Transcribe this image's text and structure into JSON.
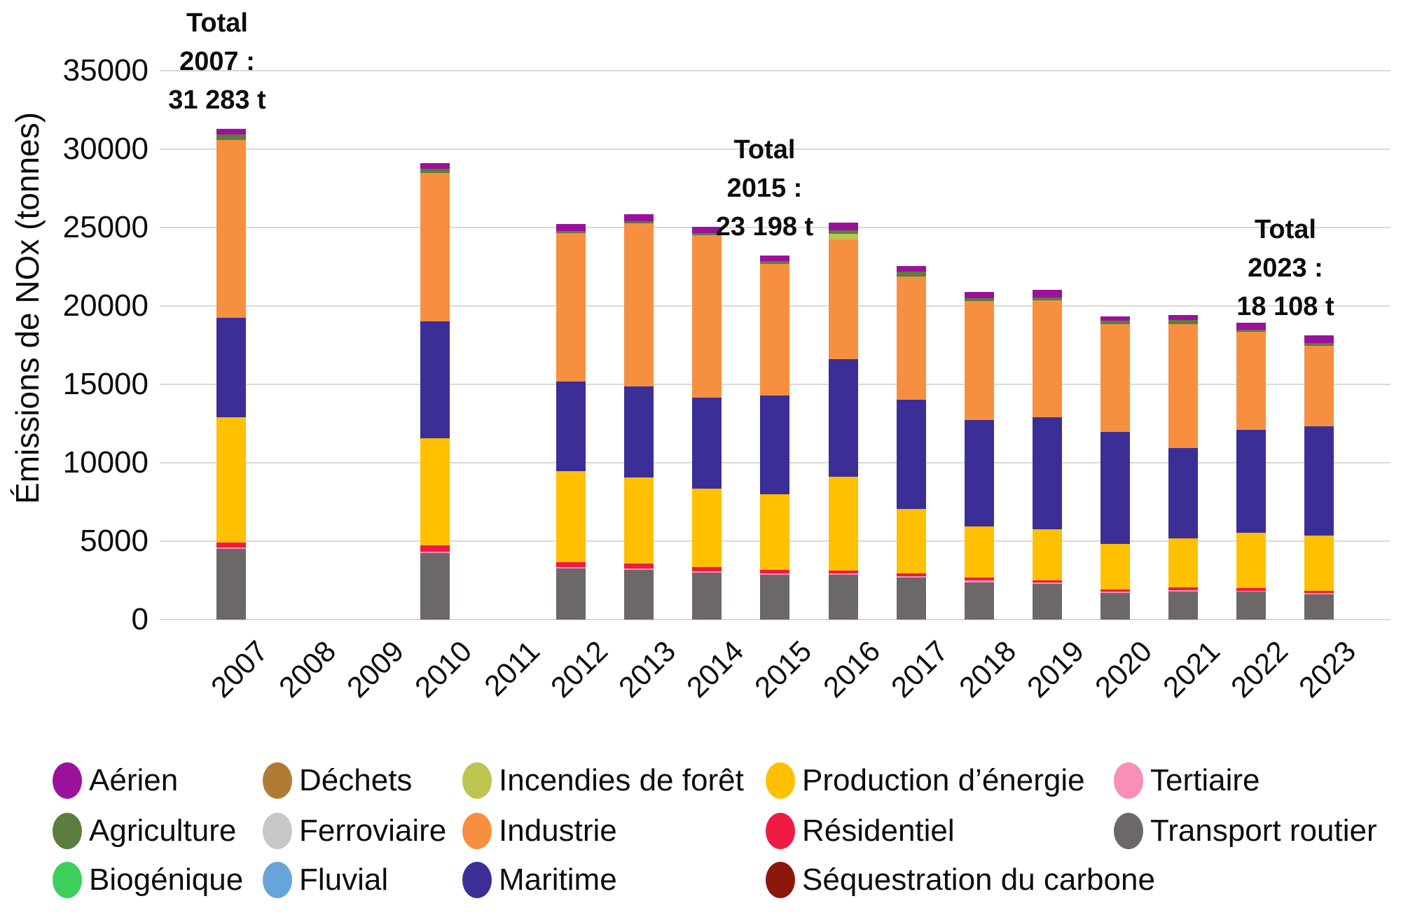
{
  "y_axis": {
    "title": "Émissions de NOx (tonnes)",
    "ticks": [
      0,
      5000,
      10000,
      15000,
      20000,
      25000,
      30000,
      35000
    ],
    "tick_labels": [
      "0",
      "5000",
      "10000",
      "15000",
      "20000",
      "25000",
      "30000",
      "35000"
    ]
  },
  "annotations": [
    {
      "year": "2007",
      "lines": [
        "Total",
        "2007 :",
        "31 283 t"
      ]
    },
    {
      "year": "2015",
      "lines": [
        "Total",
        "2015 :",
        "23 198 t"
      ]
    },
    {
      "year": "2023",
      "lines": [
        "Total",
        "2023 :",
        "18 108 t"
      ]
    }
  ],
  "chart_data": {
    "type": "bar",
    "stacked": true,
    "title": "",
    "xlabel": "",
    "ylabel": "Émissions de NOx (tonnes)",
    "ylim": [
      0,
      35000
    ],
    "grid": true,
    "legend_position": "bottom",
    "categories": [
      "2007",
      "2008",
      "2009",
      "2010",
      "2011",
      "2012",
      "2013",
      "2014",
      "2015",
      "2016",
      "2017",
      "2018",
      "2019",
      "2020",
      "2021",
      "2022",
      "2023"
    ],
    "annotated_totals": {
      "2007": 31283,
      "2015": 23198,
      "2023": 18108
    },
    "series": [
      {
        "name": "Transport routier",
        "color": "#6d6868",
        "values": [
          4500,
          0,
          0,
          4250,
          0,
          3250,
          3160,
          3000,
          2870,
          2850,
          2670,
          2375,
          2260,
          1675,
          1800,
          1780,
          1620
        ]
      },
      {
        "name": "Tertiaire",
        "color": "#f78fb8",
        "values": [
          100,
          0,
          0,
          100,
          0,
          100,
          120,
          100,
          90,
          80,
          100,
          105,
          90,
          90,
          65,
          60,
          55
        ]
      },
      {
        "name": "Séquestration du carbone",
        "color": "#8c170c",
        "values": [
          0,
          0,
          0,
          0,
          0,
          0,
          0,
          0,
          0,
          0,
          0,
          0,
          0,
          0,
          0,
          0,
          0
        ]
      },
      {
        "name": "Résidentiel",
        "color": "#ef1a43",
        "values": [
          300,
          0,
          0,
          400,
          0,
          300,
          270,
          260,
          210,
          200,
          190,
          190,
          170,
          175,
          175,
          170,
          145
        ]
      },
      {
        "name": "Production d’énergie",
        "color": "#ffc000",
        "values": [
          8010,
          0,
          0,
          6800,
          0,
          5820,
          5520,
          4990,
          4830,
          5980,
          4080,
          3250,
          3240,
          2870,
          3140,
          3530,
          3548
        ]
      },
      {
        "name": "Maritime",
        "color": "#3b2e97",
        "values": [
          6310,
          0,
          0,
          7450,
          0,
          5710,
          5800,
          5800,
          6300,
          7500,
          6980,
          6800,
          7140,
          7160,
          5760,
          6560,
          6940
        ]
      },
      {
        "name": "Industrie",
        "color": "#f78f41",
        "values": [
          11373,
          0,
          0,
          9480,
          0,
          9450,
          10380,
          10350,
          8400,
          7630,
          7870,
          7600,
          7460,
          6870,
          7910,
          6250,
          5130
        ]
      },
      {
        "name": "Incendies de forêt",
        "color": "#bdc44f",
        "values": [
          0,
          0,
          0,
          0,
          0,
          0,
          0,
          0,
          0,
          370,
          0,
          0,
          0,
          0,
          0,
          0,
          0
        ]
      },
      {
        "name": "Fluvial",
        "color": "#67a4da",
        "values": [
          0,
          0,
          0,
          0,
          0,
          0,
          0,
          0,
          0,
          0,
          0,
          0,
          0,
          0,
          0,
          0,
          0
        ]
      },
      {
        "name": "Ferroviaire",
        "color": "#c7c7c7",
        "values": [
          0,
          0,
          0,
          0,
          0,
          0,
          0,
          0,
          0,
          0,
          0,
          0,
          0,
          0,
          0,
          0,
          0
        ]
      },
      {
        "name": "Déchets",
        "color": "#b07b35",
        "values": [
          0,
          0,
          0,
          0,
          0,
          0,
          0,
          0,
          0,
          0,
          0,
          0,
          0,
          0,
          0,
          0,
          0
        ]
      },
      {
        "name": "Biogénique",
        "color": "#3dce5b",
        "values": [
          0,
          0,
          0,
          0,
          0,
          0,
          0,
          0,
          0,
          0,
          0,
          0,
          0,
          0,
          0,
          0,
          0
        ]
      },
      {
        "name": "Agriculture",
        "color": "#5b7d3e",
        "values": [
          340,
          0,
          0,
          270,
          0,
          150,
          150,
          150,
          168,
          220,
          290,
          150,
          190,
          220,
          250,
          150,
          180
        ]
      },
      {
        "name": "Aérien",
        "color": "#9b119b",
        "values": [
          350,
          0,
          0,
          350,
          0,
          440,
          450,
          400,
          330,
          480,
          380,
          420,
          480,
          270,
          300,
          450,
          490
        ]
      }
    ]
  },
  "legend": {
    "rows": [
      [
        {
          "label": "Aérien",
          "color": "#9b119b"
        },
        {
          "label": "Déchets",
          "color": "#b07b35"
        },
        {
          "label": "Incendies de forêt",
          "color": "#bdc44f"
        },
        {
          "label": "Production d’énergie",
          "color": "#ffc000"
        },
        {
          "label": "Tertiaire",
          "color": "#f78fb8"
        }
      ],
      [
        {
          "label": "Agriculture",
          "color": "#5b7d3e"
        },
        {
          "label": "Ferroviaire",
          "color": "#c7c7c7"
        },
        {
          "label": "Industrie",
          "color": "#f78f41"
        },
        {
          "label": "Résidentiel",
          "color": "#ef1a43"
        },
        {
          "label": "Transport routier",
          "color": "#6d6868"
        }
      ],
      [
        {
          "label": "Biogénique",
          "color": "#3dce5b"
        },
        {
          "label": "Fluvial",
          "color": "#67a4da"
        },
        {
          "label": "Maritime",
          "color": "#3b2e97"
        },
        {
          "label": "Séquestration du carbone",
          "color": "#8c170c"
        }
      ]
    ]
  }
}
